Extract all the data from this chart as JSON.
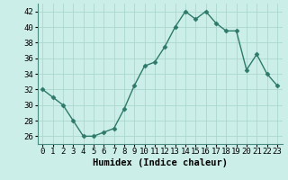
{
  "x": [
    0,
    1,
    2,
    3,
    4,
    5,
    6,
    7,
    8,
    9,
    10,
    11,
    12,
    13,
    14,
    15,
    16,
    17,
    18,
    19,
    20,
    21,
    22,
    23
  ],
  "y": [
    32,
    31,
    30,
    28,
    26,
    26,
    26.5,
    27,
    29.5,
    32.5,
    35,
    35.5,
    37.5,
    40,
    42,
    41,
    42,
    40.5,
    39.5,
    39.5,
    34.5,
    36.5,
    34,
    32.5
  ],
  "line_color": "#2d7a6a",
  "marker": "D",
  "marker_size": 2.5,
  "bg_color": "#cceee8",
  "grid_color": "#aad8d0",
  "xlabel": "Humidex (Indice chaleur)",
  "ylim": [
    25,
    43
  ],
  "xlim": [
    -0.5,
    23.5
  ],
  "yticks": [
    26,
    28,
    30,
    32,
    34,
    36,
    38,
    40,
    42
  ],
  "xticks": [
    0,
    1,
    2,
    3,
    4,
    5,
    6,
    7,
    8,
    9,
    10,
    11,
    12,
    13,
    14,
    15,
    16,
    17,
    18,
    19,
    20,
    21,
    22,
    23
  ],
  "xlabel_fontsize": 7.5,
  "tick_fontsize": 6.5,
  "linewidth": 1.0
}
